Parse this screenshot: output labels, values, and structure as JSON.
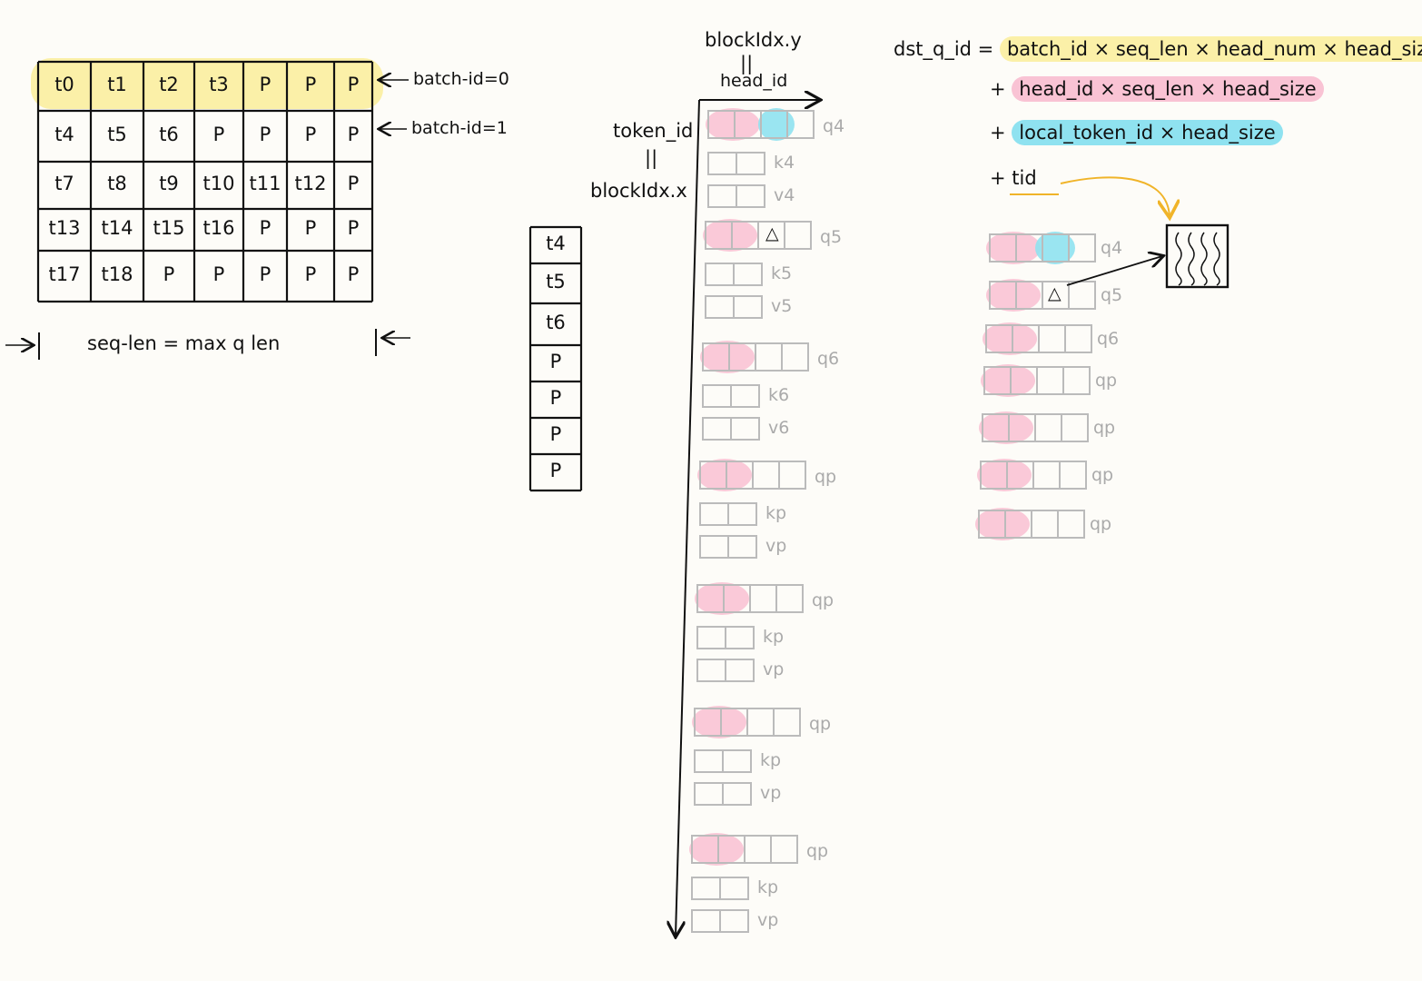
{
  "token_table": {
    "rows": [
      [
        "t0",
        "t1",
        "t2",
        "t3",
        "P",
        "P",
        "P"
      ],
      [
        "t4",
        "t5",
        "t6",
        "P",
        "P",
        "P",
        "P"
      ],
      [
        "t7",
        "t8",
        "t9",
        "t10",
        "t11",
        "t12",
        "P"
      ],
      [
        "t13",
        "t14",
        "t15",
        "t16",
        "P",
        "P",
        "P"
      ],
      [
        "t17",
        "t18",
        "P",
        "P",
        "P",
        "P",
        "P"
      ]
    ],
    "row_labels": [
      "batch-id=0",
      "batch-id=1"
    ],
    "seq_len_label": "seq-len = max q len"
  },
  "column_stack": [
    "t4",
    "t5",
    "t6",
    "P",
    "P",
    "P",
    "P"
  ],
  "axis": {
    "top_label": "blockIdx.y",
    "top_eq": "||",
    "top_sub": "head_id",
    "left_label": "token_id",
    "left_eq": "||",
    "left_sub": "blockIdx.x"
  },
  "qkv_groups": [
    {
      "q": "q4",
      "k": "k4",
      "v": "v4"
    },
    {
      "q": "q5",
      "k": "k5",
      "v": "v5"
    },
    {
      "q": "q6",
      "k": "k6",
      "v": "v6"
    },
    {
      "q": "qp",
      "k": "kp",
      "v": "vp"
    },
    {
      "q": "qp",
      "k": "kp",
      "v": "vp"
    },
    {
      "q": "qp",
      "k": "kp",
      "v": "vp"
    },
    {
      "q": "qp",
      "k": "kp",
      "v": "vp"
    }
  ],
  "marker": "△",
  "formula": {
    "lhs": "dst_q_id =",
    "line1": "batch_id × seq_len × head_num × head_size",
    "plus": "+",
    "line2": "head_id × seq_len × head_size",
    "line3": "local_token_id × head_size",
    "line4": "tid"
  },
  "right_rows": [
    "q4",
    "q5",
    "q6",
    "qp",
    "qp",
    "qp",
    "qp"
  ],
  "colors": {
    "yellow": "#fbf0a8",
    "pink": "#f9c3d4",
    "cyan": "#8fe2f0",
    "orange_arrow": "#f0b429",
    "faint": "#aaaaaa"
  }
}
